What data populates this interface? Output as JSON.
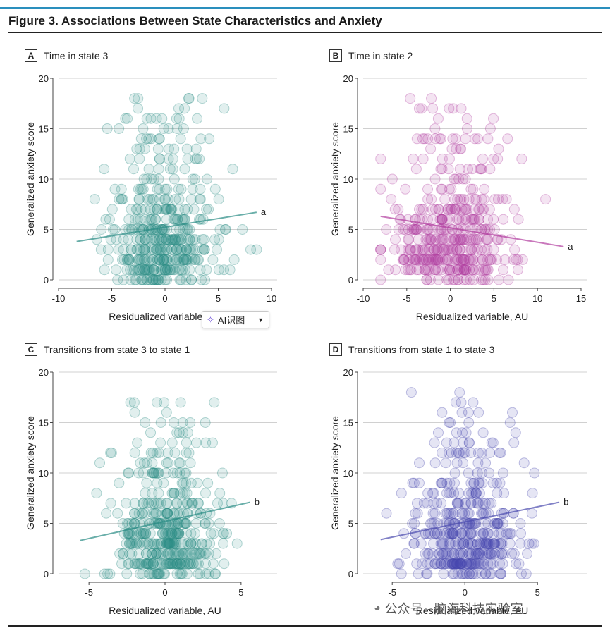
{
  "figure_title": "Figure 3. Associations Between State Characteristics and Anxiety",
  "ai_badge": {
    "label": "AI识图",
    "icon": "sparkle-icon",
    "chevron": "chevron-down-icon"
  },
  "watermark": {
    "text": "公众号 · 脑海科技实验室",
    "icon": "wechat-icon"
  },
  "chart_data": [
    {
      "type": "scatter",
      "letter": "A",
      "title": "Time in state 3",
      "xlabel": "Residualized variable, AU",
      "ylabel": "Generalized anxiety score",
      "xlim": [
        -10,
        10
      ],
      "ylim": [
        0,
        20
      ],
      "xticks": [
        -10,
        -5,
        0,
        5,
        10
      ],
      "yticks": [
        0,
        5,
        10,
        15,
        20
      ],
      "color": "#2a8c84",
      "fit_line": {
        "x": [
          -8.3,
          8.6
        ],
        "y": [
          3.8,
          6.7
        ],
        "label": "a"
      },
      "x_center": 0,
      "x_spread": 2.6,
      "x_min": -8.5,
      "x_max": 8.6,
      "n_points": 420,
      "seed": 11
    },
    {
      "type": "scatter",
      "letter": "B",
      "title": "Time in state 2",
      "xlabel": "Residualized variable, AU",
      "ylabel": "Generalized anxiety score",
      "xlim": [
        -10,
        15
      ],
      "ylim": [
        0,
        20
      ],
      "xticks": [
        -10,
        -5,
        0,
        5,
        10,
        15
      ],
      "yticks": [
        0,
        5,
        10,
        15,
        20
      ],
      "color": "#b23ea0",
      "fit_line": {
        "x": [
          -8,
          13
        ],
        "y": [
          6.3,
          3.3
        ],
        "label": "a"
      },
      "x_center": 0,
      "x_spread": 3.2,
      "x_min": -8,
      "x_max": 13,
      "n_points": 420,
      "seed": 23
    },
    {
      "type": "scatter",
      "letter": "C",
      "title": "Transitions from state 3 to state 1",
      "xlabel": "Residualized variable, AU",
      "ylabel": "Generalized anxiety score",
      "xlim": [
        -7,
        7
      ],
      "ylim": [
        0,
        20
      ],
      "xticks": [
        -5,
        0,
        5
      ],
      "yticks": [
        0,
        5,
        10,
        15,
        20
      ],
      "color": "#2a8c84",
      "fit_line": {
        "x": [
          -5.6,
          5.6
        ],
        "y": [
          3.3,
          7.1
        ],
        "label": "b"
      },
      "x_center": 0,
      "x_spread": 1.8,
      "x_min": -5.7,
      "x_max": 5.7,
      "n_points": 420,
      "seed": 37
    },
    {
      "type": "scatter",
      "letter": "D",
      "title": "Transitions from state 1 to state 3",
      "xlabel": "Residualized variable, AU",
      "ylabel": "Generalized anxiety score",
      "xlim": [
        -7,
        8
      ],
      "ylim": [
        0,
        20
      ],
      "xticks": [
        -5,
        0,
        5
      ],
      "yticks": [
        0,
        5,
        10,
        15,
        20
      ],
      "color": "#4a4aae",
      "fit_line": {
        "x": [
          -5.8,
          6.5
        ],
        "y": [
          3.4,
          7.1
        ],
        "label": "b"
      },
      "x_center": 0,
      "x_spread": 1.9,
      "x_min": -6,
      "x_max": 6.5,
      "n_points": 420,
      "seed": 53
    }
  ]
}
